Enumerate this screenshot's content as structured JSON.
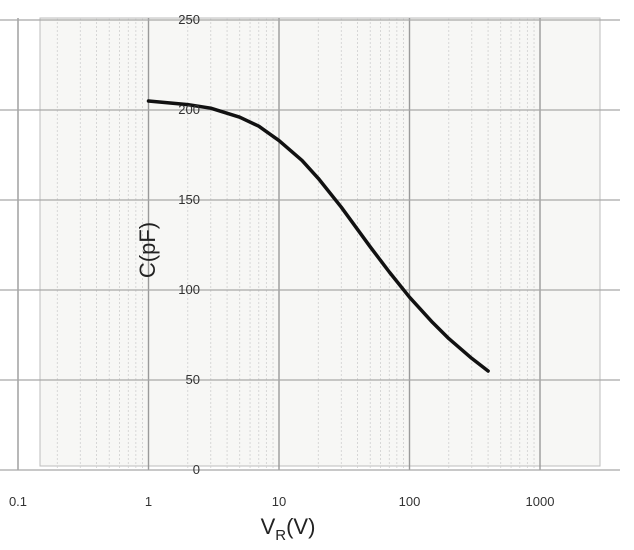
{
  "chart_data": {
    "type": "line",
    "title": "",
    "xlabel": "V",
    "xlabel_subscript": "R",
    "xlabel_unit": "(V)",
    "ylabel": "C(pF)",
    "x_scale": "log",
    "xlim": [
      0.1,
      1000
    ],
    "ylim": [
      0,
      250
    ],
    "grid": true,
    "legend": "none",
    "line_color": "#111111",
    "x_ticks": [
      {
        "value": 0.1,
        "label": "0.1"
      },
      {
        "value": 1,
        "label": "1"
      },
      {
        "value": 10,
        "label": "10"
      },
      {
        "value": 100,
        "label": "100"
      },
      {
        "value": 1000,
        "label": "1000"
      }
    ],
    "y_ticks": [
      {
        "value": 250,
        "label": "250"
      },
      {
        "value": 200,
        "label": "200"
      },
      {
        "value": 150,
        "label": "150"
      },
      {
        "value": 100,
        "label": "100"
      },
      {
        "value": 50,
        "label": "50"
      },
      {
        "value": 0,
        "label": "0"
      }
    ],
    "series": [
      {
        "x": [
          1,
          2,
          3,
          5,
          7,
          10,
          15,
          20,
          30,
          50,
          70,
          100,
          150,
          200,
          300,
          400
        ],
        "y": [
          205,
          203,
          201,
          196,
          191,
          183,
          172,
          162,
          146,
          124,
          110,
          96,
          82,
          73,
          62,
          55
        ]
      }
    ]
  }
}
